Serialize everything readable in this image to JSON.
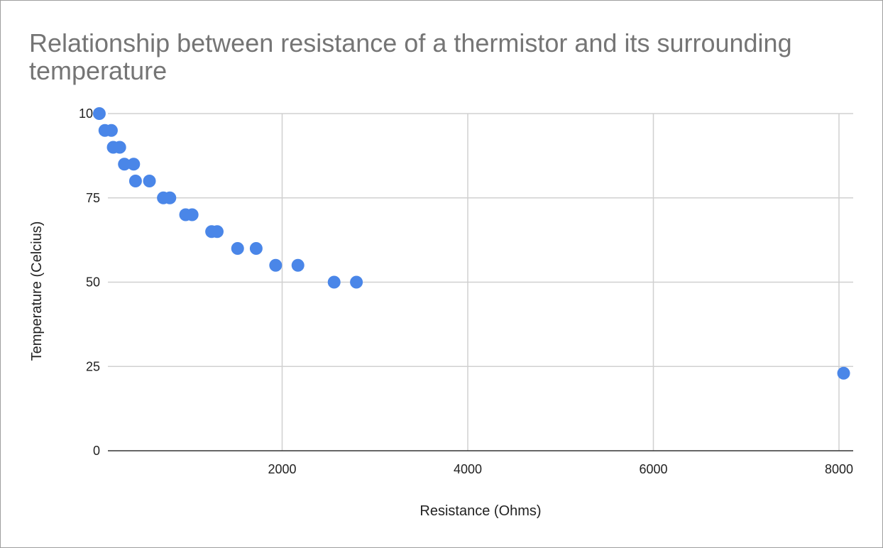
{
  "chart_data": {
    "type": "scatter",
    "title": "Relationship between resistance of a thermistor and its surrounding temperature",
    "xlabel": "Resistance (Ohms)",
    "ylabel": "Temperature (Celcius)",
    "xlim": [
      0,
      8000
    ],
    "ylim": [
      0,
      100
    ],
    "x_ticks": [
      "2000",
      "4000",
      "6000",
      "8000"
    ],
    "y_ticks": [
      "0",
      "25",
      "50",
      "75",
      "100"
    ],
    "grid": true,
    "legend": "none",
    "point_color": "#4a86e8",
    "points": [
      {
        "x": 30,
        "y": 100
      },
      {
        "x": 90,
        "y": 95
      },
      {
        "x": 160,
        "y": 95
      },
      {
        "x": 180,
        "y": 90
      },
      {
        "x": 250,
        "y": 90
      },
      {
        "x": 300,
        "y": 85
      },
      {
        "x": 400,
        "y": 85
      },
      {
        "x": 420,
        "y": 80
      },
      {
        "x": 570,
        "y": 80
      },
      {
        "x": 720,
        "y": 75
      },
      {
        "x": 790,
        "y": 75
      },
      {
        "x": 960,
        "y": 70
      },
      {
        "x": 1030,
        "y": 70
      },
      {
        "x": 1240,
        "y": 65
      },
      {
        "x": 1300,
        "y": 65
      },
      {
        "x": 1520,
        "y": 60
      },
      {
        "x": 1720,
        "y": 60
      },
      {
        "x": 1930,
        "y": 55
      },
      {
        "x": 2170,
        "y": 55
      },
      {
        "x": 2560,
        "y": 50
      },
      {
        "x": 2800,
        "y": 50
      },
      {
        "x": 8050,
        "y": 23
      }
    ]
  }
}
